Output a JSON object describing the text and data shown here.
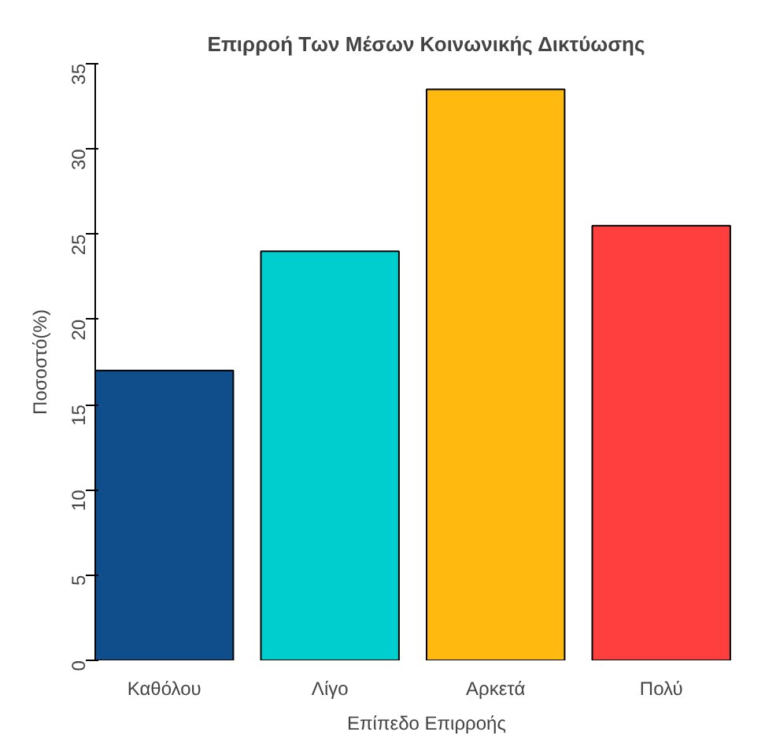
{
  "chart_data": {
    "type": "bar",
    "title": "Επιρροή Των Μέσων Κοινωνικής Δικτύωσης",
    "xlabel": "Επίπεδο Επιρροής",
    "ylabel": "Ποσοστό(%)",
    "categories": [
      "Καθόλου",
      "Λίγο",
      "Αρκετά",
      "Πολύ"
    ],
    "values": [
      17,
      24,
      33.5,
      25.5
    ],
    "colors": [
      "#104e8b",
      "#00cdcd",
      "#ffb90f",
      "#ff3e3e"
    ],
    "ylim": [
      0,
      35
    ],
    "yticks": [
      0,
      5,
      10,
      15,
      20,
      25,
      30,
      35
    ],
    "grid": false
  }
}
